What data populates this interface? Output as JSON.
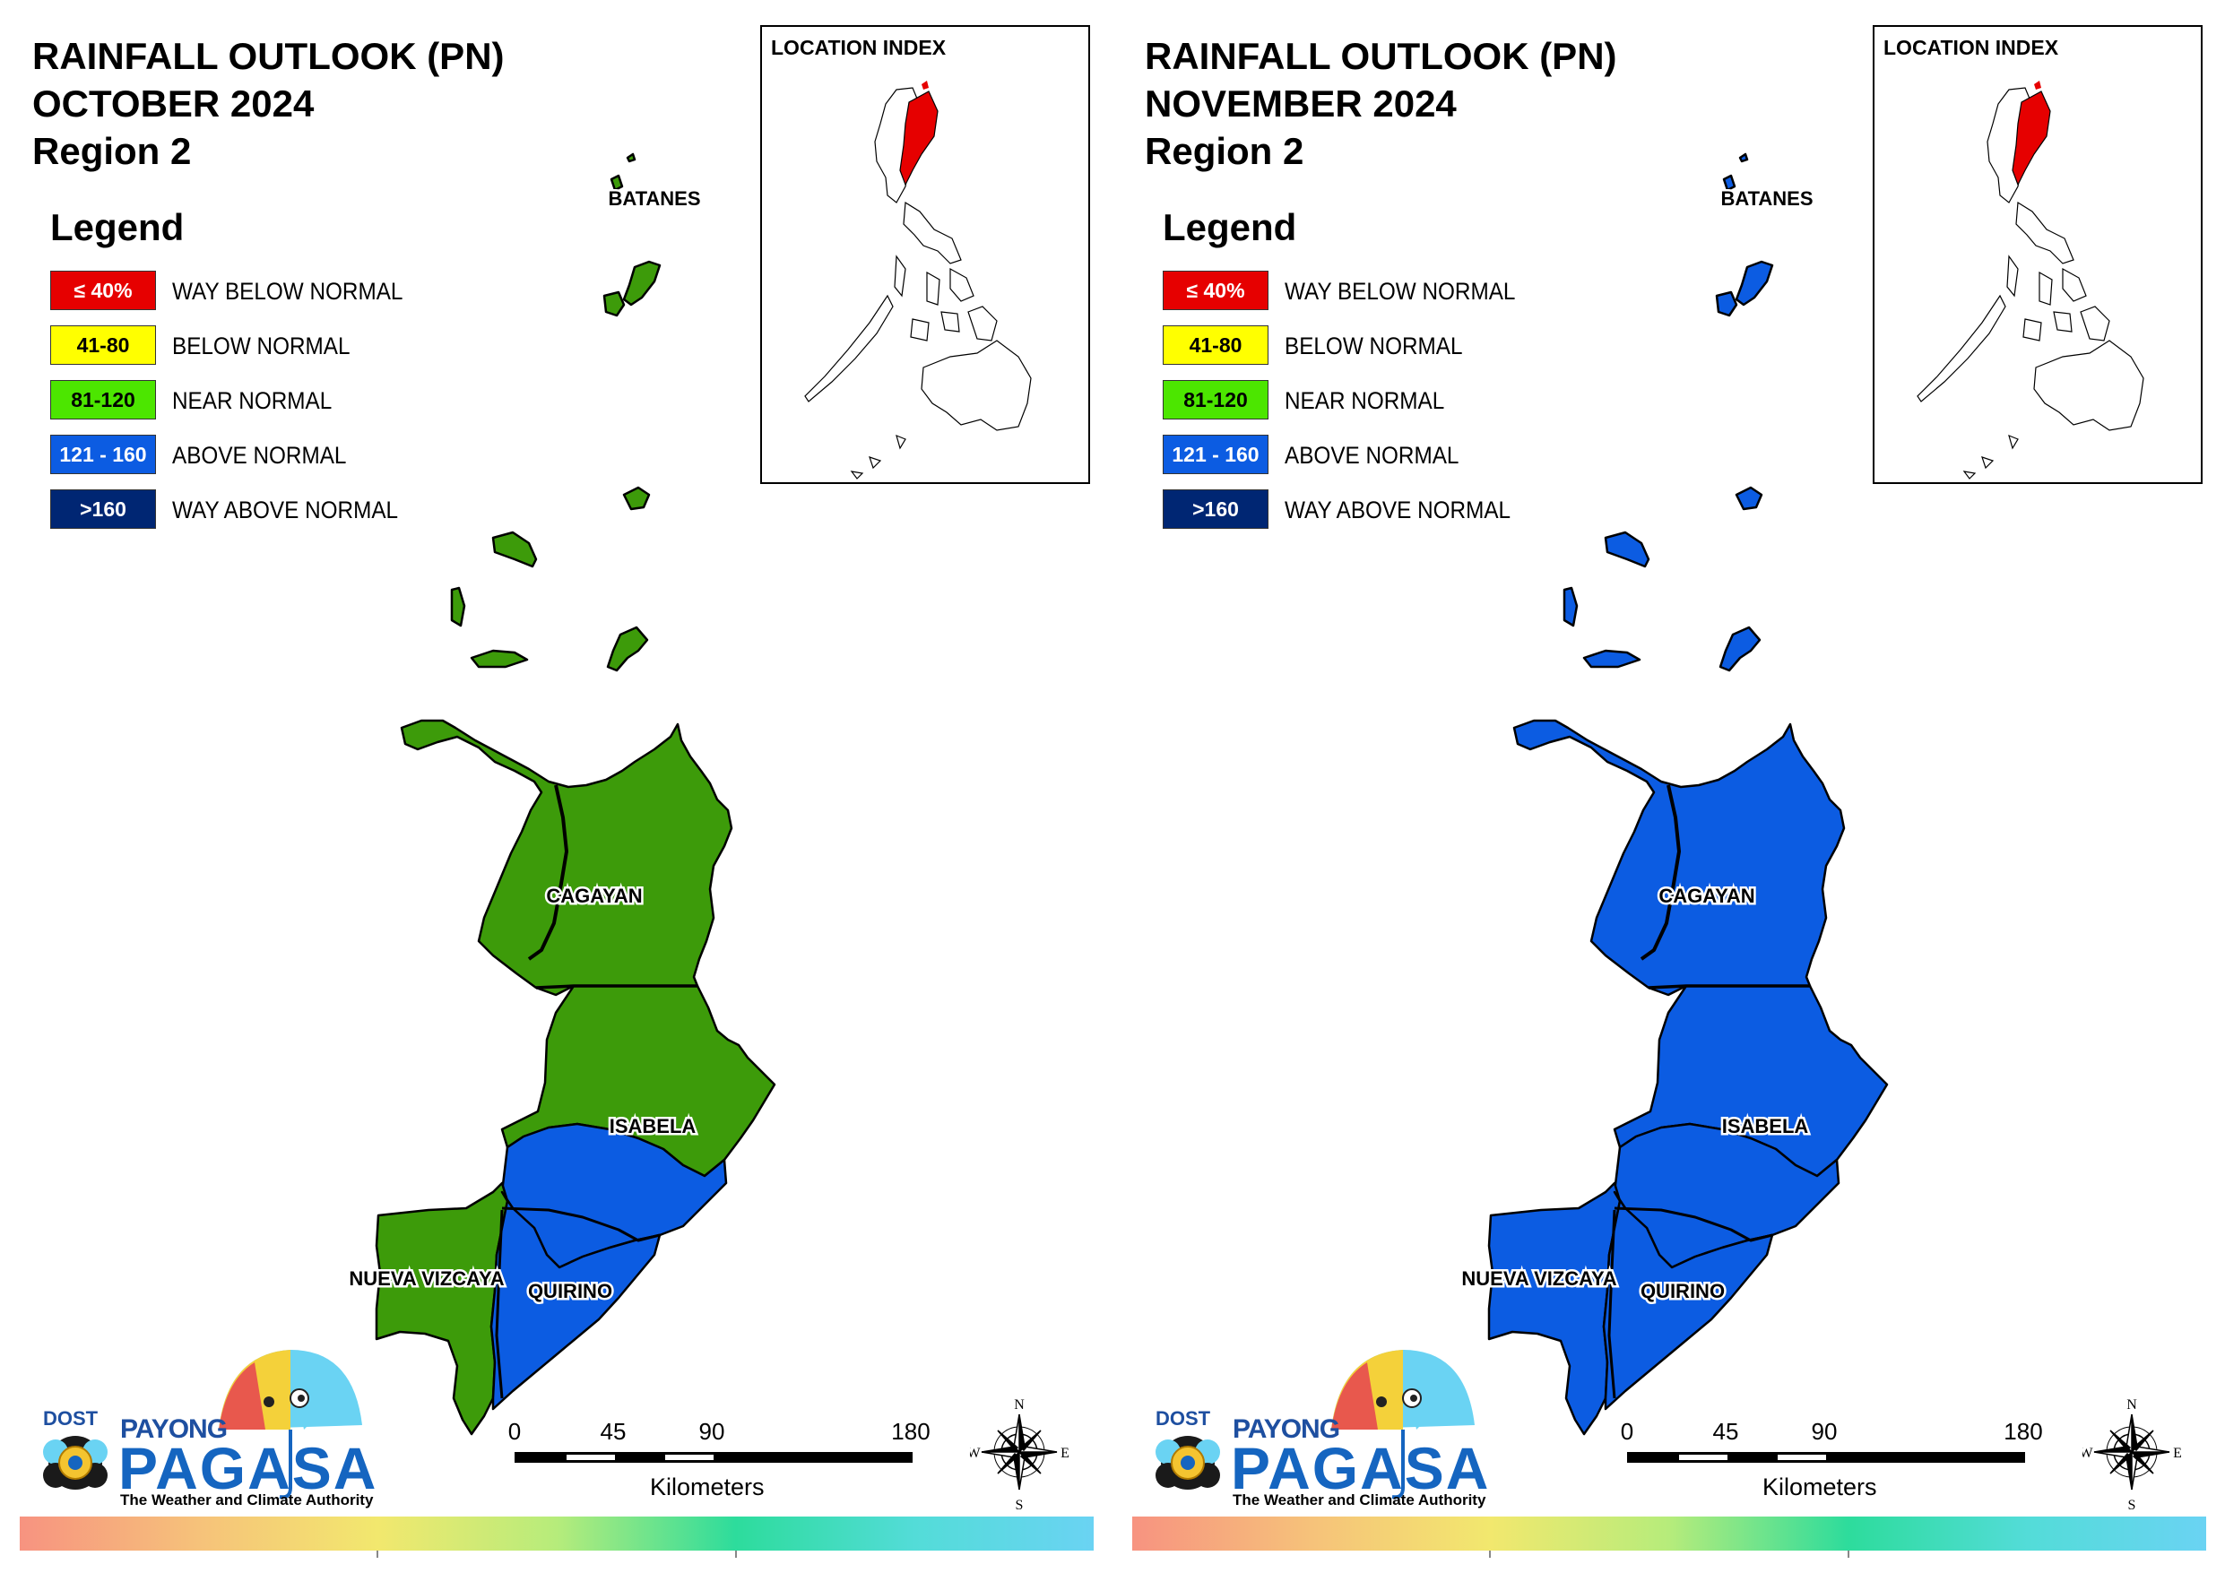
{
  "panels": [
    {
      "title_line1": "RAINFALL OUTLOOK (PN)",
      "title_line2": "OCTOBER 2024",
      "title_line3": "Region 2",
      "region_colors": {
        "batanes": "#3d9b0a",
        "cagayan": "#3d9b0a",
        "isabela_north": "#3d9b0a",
        "isabela_south": "#0c5ce2",
        "nueva_vizcaya": "#3d9b0a",
        "quirino": "#0c5ce2"
      }
    },
    {
      "title_line1": "RAINFALL OUTLOOK (PN)",
      "title_line2": "NOVEMBER 2024",
      "title_line3": "Region 2",
      "region_colors": {
        "batanes": "#0c5ce2",
        "cagayan": "#0c5ce2",
        "isabela_north": "#0c5ce2",
        "isabela_south": "#0c5ce2",
        "nueva_vizcaya": "#0c5ce2",
        "quirino": "#0c5ce2"
      }
    }
  ],
  "legend": {
    "title": "Legend",
    "items": [
      {
        "range": "≤ 40%",
        "label": "WAY BELOW NORMAL",
        "color": "#e60000",
        "text_color": "#ffffff"
      },
      {
        "range": "41-80",
        "label": "BELOW NORMAL",
        "color": "#ffff00",
        "text_color": "#000000"
      },
      {
        "range": "81-120",
        "label": "NEAR NORMAL",
        "color": "#4ce600",
        "text_color": "#000000"
      },
      {
        "range": "121 - 160",
        "label": "ABOVE NORMAL",
        "color": "#0c5ce2",
        "text_color": "#ffffff"
      },
      {
        "range": ">160",
        "label": "WAY ABOVE NORMAL",
        "color": "#002673",
        "text_color": "#ffffff"
      }
    ]
  },
  "location_index": {
    "label": "LOCATION INDEX",
    "highlight_color": "#e60000"
  },
  "places": {
    "batanes": "BATANES",
    "cagayan": "CAGAYAN",
    "isabela": "ISABELA",
    "nueva_vizcaya": "NUEVA VIZCAYA",
    "quirino": "QUIRINO"
  },
  "scale": {
    "ticks": [
      "0",
      "45",
      "90",
      "180"
    ],
    "unit": "Kilometers"
  },
  "compass": {
    "n": "N",
    "s": "S",
    "e": "E",
    "w": "W"
  },
  "branding": {
    "dost": "DOST",
    "payong": "PAYONG",
    "pagasa": "PAGASA",
    "tagline": "The Weather and Climate Authority"
  }
}
